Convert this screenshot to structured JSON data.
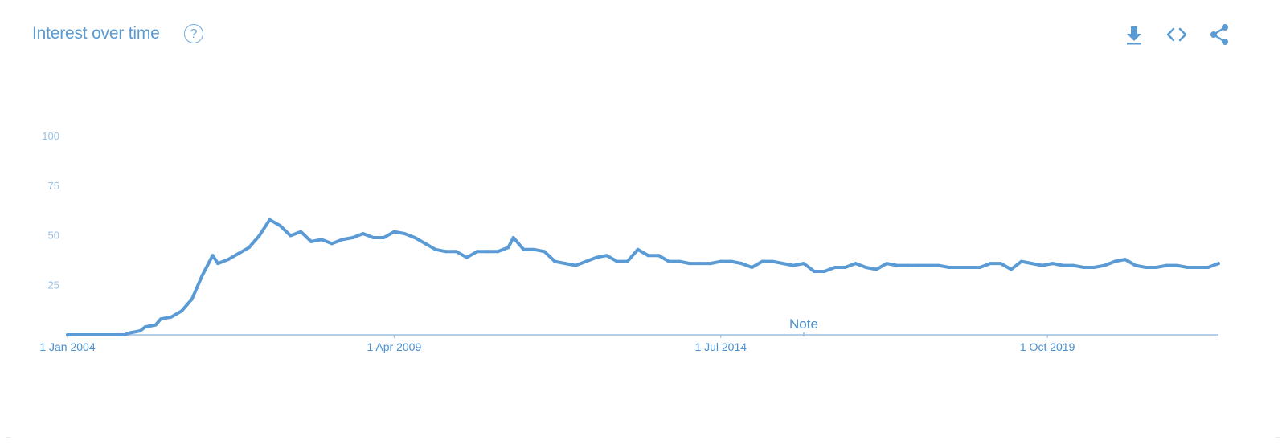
{
  "header": {
    "title": "Interest over time",
    "help_glyph": "?",
    "tools": [
      {
        "icon": "download-icon"
      },
      {
        "icon": "embed-code-icon"
      },
      {
        "icon": "share-icon"
      }
    ]
  },
  "colors": {
    "accent": "#5a9bd4",
    "line": "#5b9bd5",
    "axis": "#9bbfe0"
  },
  "chart_data": {
    "type": "line",
    "title": "Interest over time",
    "xlabel": "",
    "ylabel": "",
    "ylim": [
      0,
      100
    ],
    "yticks": [
      25,
      50,
      75,
      100
    ],
    "ytick_labels": [
      "25",
      "50",
      "75",
      "100"
    ],
    "xlim": [
      "2004-01",
      "2022-07"
    ],
    "xticks": [
      "2004-01",
      "2009-04",
      "2014-07",
      "2019-10"
    ],
    "xtick_labels": [
      "1 Jan 2004",
      "1 Apr 2009",
      "1 Jul 2014",
      "1 Oct 2019"
    ],
    "grid": false,
    "legend": "none",
    "annotations": [
      {
        "label": "Note",
        "x": "2015-11"
      }
    ],
    "series": [
      {
        "points": [
          [
            "2004-01",
            0
          ],
          [
            "2004-06",
            0
          ],
          [
            "2004-12",
            0
          ],
          [
            "2005-01",
            1
          ],
          [
            "2005-03",
            2
          ],
          [
            "2005-04",
            4
          ],
          [
            "2005-06",
            5
          ],
          [
            "2005-07",
            8
          ],
          [
            "2005-09",
            9
          ],
          [
            "2005-11",
            12
          ],
          [
            "2006-01",
            18
          ],
          [
            "2006-03",
            30
          ],
          [
            "2006-05",
            40
          ],
          [
            "2006-06",
            36
          ],
          [
            "2006-08",
            38
          ],
          [
            "2006-10",
            41
          ],
          [
            "2006-12",
            44
          ],
          [
            "2007-02",
            50
          ],
          [
            "2007-04",
            58
          ],
          [
            "2007-06",
            55
          ],
          [
            "2007-08",
            50
          ],
          [
            "2007-10",
            52
          ],
          [
            "2007-12",
            47
          ],
          [
            "2008-02",
            48
          ],
          [
            "2008-04",
            46
          ],
          [
            "2008-06",
            48
          ],
          [
            "2008-08",
            49
          ],
          [
            "2008-10",
            51
          ],
          [
            "2008-12",
            49
          ],
          [
            "2009-02",
            49
          ],
          [
            "2009-04",
            52
          ],
          [
            "2009-06",
            51
          ],
          [
            "2009-08",
            49
          ],
          [
            "2009-10",
            46
          ],
          [
            "2009-12",
            43
          ],
          [
            "2010-02",
            42
          ],
          [
            "2010-04",
            42
          ],
          [
            "2010-06",
            39
          ],
          [
            "2010-08",
            42
          ],
          [
            "2010-10",
            42
          ],
          [
            "2010-12",
            42
          ],
          [
            "2011-02",
            44
          ],
          [
            "2011-03",
            49
          ],
          [
            "2011-05",
            43
          ],
          [
            "2011-07",
            43
          ],
          [
            "2011-09",
            42
          ],
          [
            "2011-11",
            37
          ],
          [
            "2012-01",
            36
          ],
          [
            "2012-03",
            35
          ],
          [
            "2012-05",
            37
          ],
          [
            "2012-07",
            39
          ],
          [
            "2012-09",
            40
          ],
          [
            "2012-11",
            37
          ],
          [
            "2013-01",
            37
          ],
          [
            "2013-03",
            43
          ],
          [
            "2013-05",
            40
          ],
          [
            "2013-07",
            40
          ],
          [
            "2013-09",
            37
          ],
          [
            "2013-11",
            37
          ],
          [
            "2014-01",
            36
          ],
          [
            "2014-03",
            36
          ],
          [
            "2014-05",
            36
          ],
          [
            "2014-07",
            37
          ],
          [
            "2014-09",
            37
          ],
          [
            "2014-11",
            36
          ],
          [
            "2015-01",
            34
          ],
          [
            "2015-03",
            37
          ],
          [
            "2015-05",
            37
          ],
          [
            "2015-07",
            36
          ],
          [
            "2015-09",
            35
          ],
          [
            "2015-11",
            36
          ],
          [
            "2016-01",
            32
          ],
          [
            "2016-03",
            32
          ],
          [
            "2016-05",
            34
          ],
          [
            "2016-07",
            34
          ],
          [
            "2016-09",
            36
          ],
          [
            "2016-11",
            34
          ],
          [
            "2017-01",
            33
          ],
          [
            "2017-03",
            36
          ],
          [
            "2017-05",
            35
          ],
          [
            "2017-07",
            35
          ],
          [
            "2017-09",
            35
          ],
          [
            "2017-11",
            35
          ],
          [
            "2018-01",
            35
          ],
          [
            "2018-03",
            34
          ],
          [
            "2018-05",
            34
          ],
          [
            "2018-07",
            34
          ],
          [
            "2018-09",
            34
          ],
          [
            "2018-11",
            36
          ],
          [
            "2019-01",
            36
          ],
          [
            "2019-03",
            33
          ],
          [
            "2019-05",
            37
          ],
          [
            "2019-07",
            36
          ],
          [
            "2019-09",
            35
          ],
          [
            "2019-11",
            36
          ],
          [
            "2020-01",
            35
          ],
          [
            "2020-03",
            35
          ],
          [
            "2020-05",
            34
          ],
          [
            "2020-07",
            34
          ],
          [
            "2020-09",
            35
          ],
          [
            "2020-11",
            37
          ],
          [
            "2021-01",
            38
          ],
          [
            "2021-03",
            35
          ],
          [
            "2021-05",
            34
          ],
          [
            "2021-07",
            34
          ],
          [
            "2021-09",
            35
          ],
          [
            "2021-11",
            35
          ],
          [
            "2022-01",
            34
          ],
          [
            "2022-03",
            34
          ],
          [
            "2022-05",
            34
          ],
          [
            "2022-07",
            36
          ]
        ]
      }
    ]
  },
  "footer": {
    "left_mark": "..",
    "right_mark": ".."
  }
}
